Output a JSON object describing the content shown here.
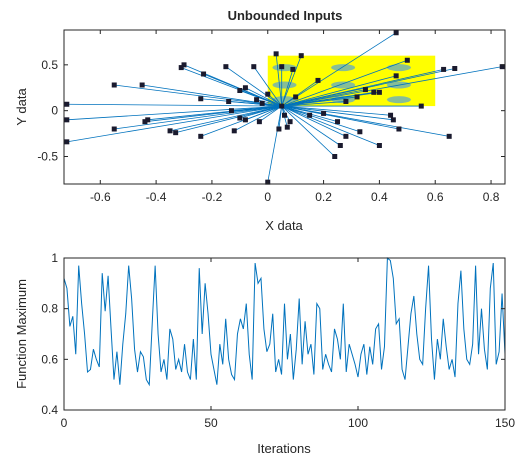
{
  "chart_data": [
    {
      "type": "scatter",
      "title": "Unbounded Inputs",
      "xlabel": "X data",
      "ylabel": "Y data",
      "xlim": [
        -0.73,
        0.85
      ],
      "ylim": [
        -0.8,
        0.88
      ],
      "xticks": [
        "-0.6",
        "-0.4",
        "-0.2",
        "0",
        "0.2",
        "0.4",
        "0.6",
        "0.8"
      ],
      "yticks": [
        "-0.5",
        "0",
        "0.5"
      ],
      "grid": false,
      "colors": {
        "line": "#0072bd",
        "marker": "#1a1a2e",
        "highlight": "#ffff00"
      },
      "center": [
        0.05,
        0.05
      ],
      "highlight_region": {
        "x": [
          0.0,
          0.6
        ],
        "y": [
          0.05,
          0.6
        ]
      },
      "points": [
        [
          0.46,
          0.85
        ],
        [
          0.03,
          0.62
        ],
        [
          -0.31,
          0.47
        ],
        [
          -0.3,
          0.5
        ],
        [
          -0.15,
          0.48
        ],
        [
          -0.05,
          0.48
        ],
        [
          -0.23,
          0.4
        ],
        [
          -0.45,
          0.28
        ],
        [
          -0.55,
          0.28
        ],
        [
          -0.72,
          0.07
        ],
        [
          -0.72,
          -0.1
        ],
        [
          -0.72,
          -0.34
        ],
        [
          -0.55,
          -0.2
        ],
        [
          -0.44,
          -0.12
        ],
        [
          -0.43,
          -0.1
        ],
        [
          -0.35,
          -0.22
        ],
        [
          -0.33,
          -0.24
        ],
        [
          -0.24,
          -0.28
        ],
        [
          -0.12,
          -0.22
        ],
        [
          -0.08,
          -0.1
        ],
        [
          -0.03,
          -0.12
        ],
        [
          -0.1,
          -0.08
        ],
        [
          -0.13,
          0.0
        ],
        [
          -0.14,
          0.1
        ],
        [
          -0.04,
          0.12
        ],
        [
          0.0,
          0.18
        ],
        [
          -0.08,
          0.25
        ],
        [
          -0.1,
          0.22
        ],
        [
          -0.24,
          0.13
        ],
        [
          -0.02,
          0.08
        ],
        [
          0.05,
          0.05
        ],
        [
          0.06,
          -0.05
        ],
        [
          0.07,
          -0.18
        ],
        [
          0.08,
          -0.12
        ],
        [
          0.09,
          0.45
        ],
        [
          0.1,
          0.15
        ],
        [
          0.12,
          0.6
        ],
        [
          0.15,
          -0.05
        ],
        [
          0.04,
          -0.2
        ],
        [
          0.0,
          -0.78
        ],
        [
          0.24,
          -0.5
        ],
        [
          0.26,
          -0.38
        ],
        [
          0.28,
          -0.28
        ],
        [
          0.25,
          -0.12
        ],
        [
          0.28,
          0.1
        ],
        [
          0.33,
          -0.23
        ],
        [
          0.32,
          0.15
        ],
        [
          0.35,
          0.23
        ],
        [
          0.38,
          0.2
        ],
        [
          0.4,
          0.2
        ],
        [
          0.44,
          -0.05
        ],
        [
          0.46,
          0.38
        ],
        [
          0.5,
          0.55
        ],
        [
          0.55,
          0.05
        ],
        [
          0.4,
          -0.38
        ],
        [
          0.47,
          -0.2
        ],
        [
          0.45,
          -0.1
        ],
        [
          0.63,
          0.45
        ],
        [
          0.67,
          0.46
        ],
        [
          0.84,
          0.48
        ],
        [
          0.65,
          -0.28
        ],
        [
          0.2,
          -0.03
        ],
        [
          0.18,
          0.33
        ],
        [
          0.05,
          0.48
        ]
      ]
    },
    {
      "type": "line",
      "title": "",
      "xlabel": "Iterations",
      "ylabel": "Function Maximum",
      "xlim": [
        0,
        150
      ],
      "ylim": [
        0.4,
        1.0
      ],
      "xticks": [
        "0",
        "50",
        "100",
        "150"
      ],
      "yticks": [
        "0.4",
        "0.6",
        "0.8",
        "1"
      ],
      "grid": false,
      "color": "#0072bd",
      "x_start": 0,
      "x_step": 1,
      "values": [
        0.92,
        0.88,
        0.73,
        0.77,
        0.62,
        0.97,
        0.82,
        0.7,
        0.55,
        0.56,
        0.64,
        0.6,
        0.57,
        0.94,
        0.79,
        0.93,
        0.72,
        0.52,
        0.63,
        0.5,
        0.66,
        0.78,
        0.97,
        0.84,
        0.64,
        0.55,
        0.63,
        0.61,
        0.52,
        0.5,
        0.74,
        0.97,
        0.7,
        0.55,
        0.6,
        0.52,
        0.72,
        0.68,
        0.56,
        0.6,
        0.55,
        0.66,
        0.55,
        0.52,
        0.68,
        0.52,
        0.96,
        0.7,
        0.9,
        0.78,
        0.62,
        0.56,
        0.5,
        0.66,
        0.58,
        0.76,
        0.6,
        0.54,
        0.52,
        0.7,
        0.76,
        0.72,
        0.82,
        0.62,
        0.52,
        0.98,
        0.9,
        0.92,
        0.72,
        0.63,
        0.66,
        0.78,
        0.55,
        0.6,
        0.54,
        0.82,
        0.6,
        0.7,
        0.52,
        0.64,
        0.84,
        0.58,
        0.75,
        0.62,
        0.66,
        0.54,
        0.82,
        0.8,
        0.56,
        0.62,
        0.58,
        0.55,
        0.72,
        0.68,
        0.6,
        0.82,
        0.55,
        0.66,
        0.62,
        0.58,
        0.53,
        0.62,
        0.66,
        0.54,
        0.65,
        0.58,
        0.72,
        0.74,
        0.56,
        0.65,
        1.0,
        0.99,
        0.92,
        0.74,
        0.76,
        0.56,
        0.52,
        0.65,
        0.78,
        0.85,
        0.7,
        0.6,
        0.58,
        0.8,
        0.97,
        0.68,
        0.52,
        0.68,
        0.6,
        0.76,
        0.65,
        0.56,
        0.6,
        0.53,
        0.82,
        0.95,
        0.72,
        0.6,
        0.58,
        0.66,
        0.97,
        0.62,
        0.8,
        0.64,
        0.56,
        0.88,
        0.98,
        0.58,
        0.63,
        0.86,
        0.62
      ]
    }
  ]
}
